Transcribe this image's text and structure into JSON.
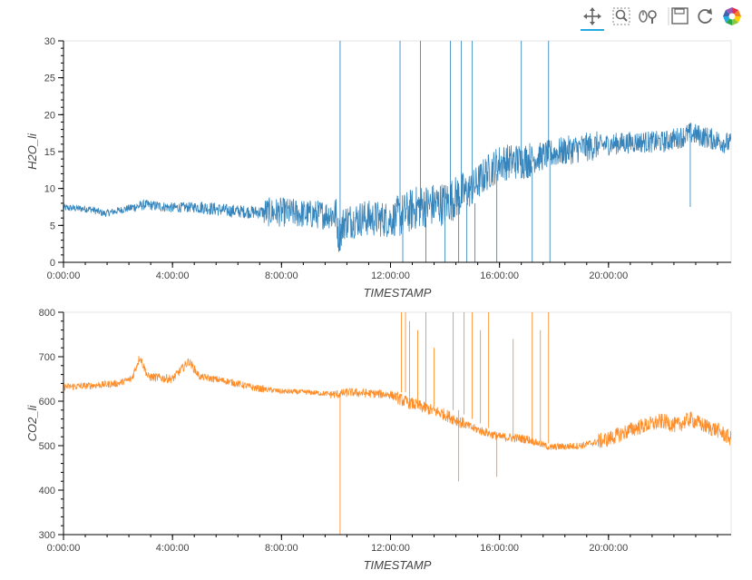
{
  "toolbar": {
    "tools": [
      {
        "name": "pan-tool",
        "icon": "pan-icon",
        "active": true
      },
      {
        "name": "box-zoom-tool",
        "icon": "box-zoom-icon",
        "active": false
      },
      {
        "name": "wheel-zoom-tool",
        "icon": "wheel-zoom-icon",
        "active": false
      },
      {
        "name": "save-tool",
        "icon": "save-icon",
        "active": false
      },
      {
        "name": "reset-tool",
        "icon": "reset-icon",
        "active": false
      },
      {
        "name": "bokeh-logo",
        "icon": "bokeh-logo-icon",
        "active": false
      }
    ]
  },
  "chart_data": [
    {
      "type": "line",
      "title": "",
      "xlabel": "TIMESTAMP",
      "ylabel": "H2O_li",
      "x_unit": "hours",
      "xlim": [
        0,
        24.5
      ],
      "ylim": [
        0,
        30
      ],
      "x_ticks": [
        0,
        4,
        8,
        12,
        16,
        20
      ],
      "x_tick_labels": [
        "0:00:00",
        "4:00:00",
        "8:00:00",
        "12:00:00",
        "16:00:00",
        "20:00:00"
      ],
      "y_ticks": [
        0,
        5,
        10,
        15,
        20,
        25,
        30
      ],
      "y_tick_labels": [
        "0",
        "5",
        "10",
        "15",
        "20",
        "25",
        "30"
      ],
      "color": "#1f77b4",
      "noise_band": [
        0.5,
        0.7,
        0.9,
        2.0,
        2.5,
        3.0,
        2.5,
        2.0,
        1.5,
        1.5
      ],
      "series": [
        {
          "x": [
            0,
            1,
            1.5,
            2,
            3,
            4,
            5,
            6,
            7,
            8,
            9,
            10,
            10.1,
            10.3,
            11,
            12,
            12.5,
            13,
            14,
            15,
            15.5,
            16,
            17,
            18,
            19,
            20,
            21,
            22,
            22.7,
            23,
            23.5,
            24,
            24.5
          ],
          "y": [
            7.4,
            7.2,
            6.6,
            7.0,
            7.8,
            7.4,
            7.5,
            7.0,
            6.8,
            6.8,
            6.5,
            6.5,
            3.5,
            5.5,
            6.0,
            5.8,
            6.5,
            7.5,
            8.0,
            10.0,
            12.0,
            13.5,
            13.8,
            14.8,
            15.5,
            16.0,
            16.3,
            16.3,
            17.0,
            17.5,
            17.0,
            16.5,
            16.0
          ]
        }
      ],
      "spikes": [
        {
          "x": 10.15,
          "y_from": 5,
          "y_to": 30
        },
        {
          "x": 12.35,
          "y_from": 7,
          "y_to": 30
        },
        {
          "x": 12.45,
          "y_from": 6,
          "y_to": 0
        },
        {
          "x": 13.1,
          "y_from": 6,
          "y_to": 30
        },
        {
          "x": 13.3,
          "y_from": 6,
          "y_to": 0
        },
        {
          "x": 14.0,
          "y_from": 8,
          "y_to": 0
        },
        {
          "x": 14.2,
          "y_from": 8,
          "y_to": 30
        },
        {
          "x": 14.5,
          "y_from": 8,
          "y_to": 0
        },
        {
          "x": 14.6,
          "y_from": 8,
          "y_to": 30
        },
        {
          "x": 14.8,
          "y_from": 8,
          "y_to": 0
        },
        {
          "x": 15.0,
          "y_from": 8,
          "y_to": 30
        },
        {
          "x": 15.1,
          "y_from": 8,
          "y_to": 0
        },
        {
          "x": 15.9,
          "y_from": 12,
          "y_to": 0
        },
        {
          "x": 16.8,
          "y_from": 13,
          "y_to": 30
        },
        {
          "x": 17.2,
          "y_from": 13,
          "y_to": 0
        },
        {
          "x": 17.8,
          "y_from": 14,
          "y_to": 30
        },
        {
          "x": 17.85,
          "y_from": 14,
          "y_to": 0
        },
        {
          "x": 23.0,
          "y_from": 17,
          "y_to": 7.5
        }
      ]
    },
    {
      "type": "line",
      "title": "",
      "xlabel": "TIMESTAMP",
      "ylabel": "CO2_li",
      "x_unit": "hours",
      "xlim": [
        0,
        24.5
      ],
      "ylim": [
        300,
        800
      ],
      "x_ticks": [
        0,
        4,
        8,
        12,
        16,
        20
      ],
      "x_tick_labels": [
        "0:00:00",
        "4:00:00",
        "8:00:00",
        "12:00:00",
        "16:00:00",
        "20:00:00"
      ],
      "y_ticks": [
        300,
        400,
        500,
        600,
        700,
        800
      ],
      "y_tick_labels": [
        "300",
        "400",
        "500",
        "600",
        "700",
        "800"
      ],
      "color": "#ff7f0e",
      "noise_band": [
        8,
        10,
        8,
        6,
        10,
        14,
        10,
        8,
        18,
        18
      ],
      "series": [
        {
          "x": [
            0,
            1,
            2,
            2.5,
            2.8,
            3.1,
            4,
            4.6,
            5,
            6,
            7,
            8,
            9,
            10,
            10.5,
            11,
            12,
            12.5,
            13,
            14,
            15,
            16,
            17,
            17.9,
            18,
            19,
            20,
            21,
            22,
            22.5,
            23,
            23.5,
            24,
            24.5
          ],
          "y": [
            632,
            635,
            640,
            650,
            700,
            655,
            650,
            690,
            655,
            645,
            630,
            622,
            620,
            615,
            620,
            618,
            615,
            600,
            590,
            570,
            540,
            520,
            515,
            495,
            497,
            500,
            515,
            540,
            555,
            545,
            560,
            545,
            535,
            515
          ]
        }
      ],
      "spikes": [
        {
          "x": 10.15,
          "y_from": 615,
          "y_to": 300
        },
        {
          "x": 12.4,
          "y_from": 620,
          "y_to": 800
        },
        {
          "x": 12.55,
          "y_from": 620,
          "y_to": 800
        },
        {
          "x": 12.7,
          "y_from": 610,
          "y_to": 780
        },
        {
          "x": 13.0,
          "y_from": 600,
          "y_to": 760
        },
        {
          "x": 13.3,
          "y_from": 590,
          "y_to": 800
        },
        {
          "x": 13.6,
          "y_from": 590,
          "y_to": 720
        },
        {
          "x": 14.3,
          "y_from": 580,
          "y_to": 800
        },
        {
          "x": 14.5,
          "y_from": 580,
          "y_to": 420
        },
        {
          "x": 14.7,
          "y_from": 570,
          "y_to": 800
        },
        {
          "x": 15.0,
          "y_from": 560,
          "y_to": 800
        },
        {
          "x": 15.3,
          "y_from": 550,
          "y_to": 760
        },
        {
          "x": 15.6,
          "y_from": 540,
          "y_to": 800
        },
        {
          "x": 15.9,
          "y_from": 530,
          "y_to": 430
        },
        {
          "x": 16.5,
          "y_from": 520,
          "y_to": 740
        },
        {
          "x": 17.2,
          "y_from": 515,
          "y_to": 800
        },
        {
          "x": 17.5,
          "y_from": 510,
          "y_to": 760
        },
        {
          "x": 17.8,
          "y_from": 505,
          "y_to": 800
        }
      ]
    }
  ]
}
